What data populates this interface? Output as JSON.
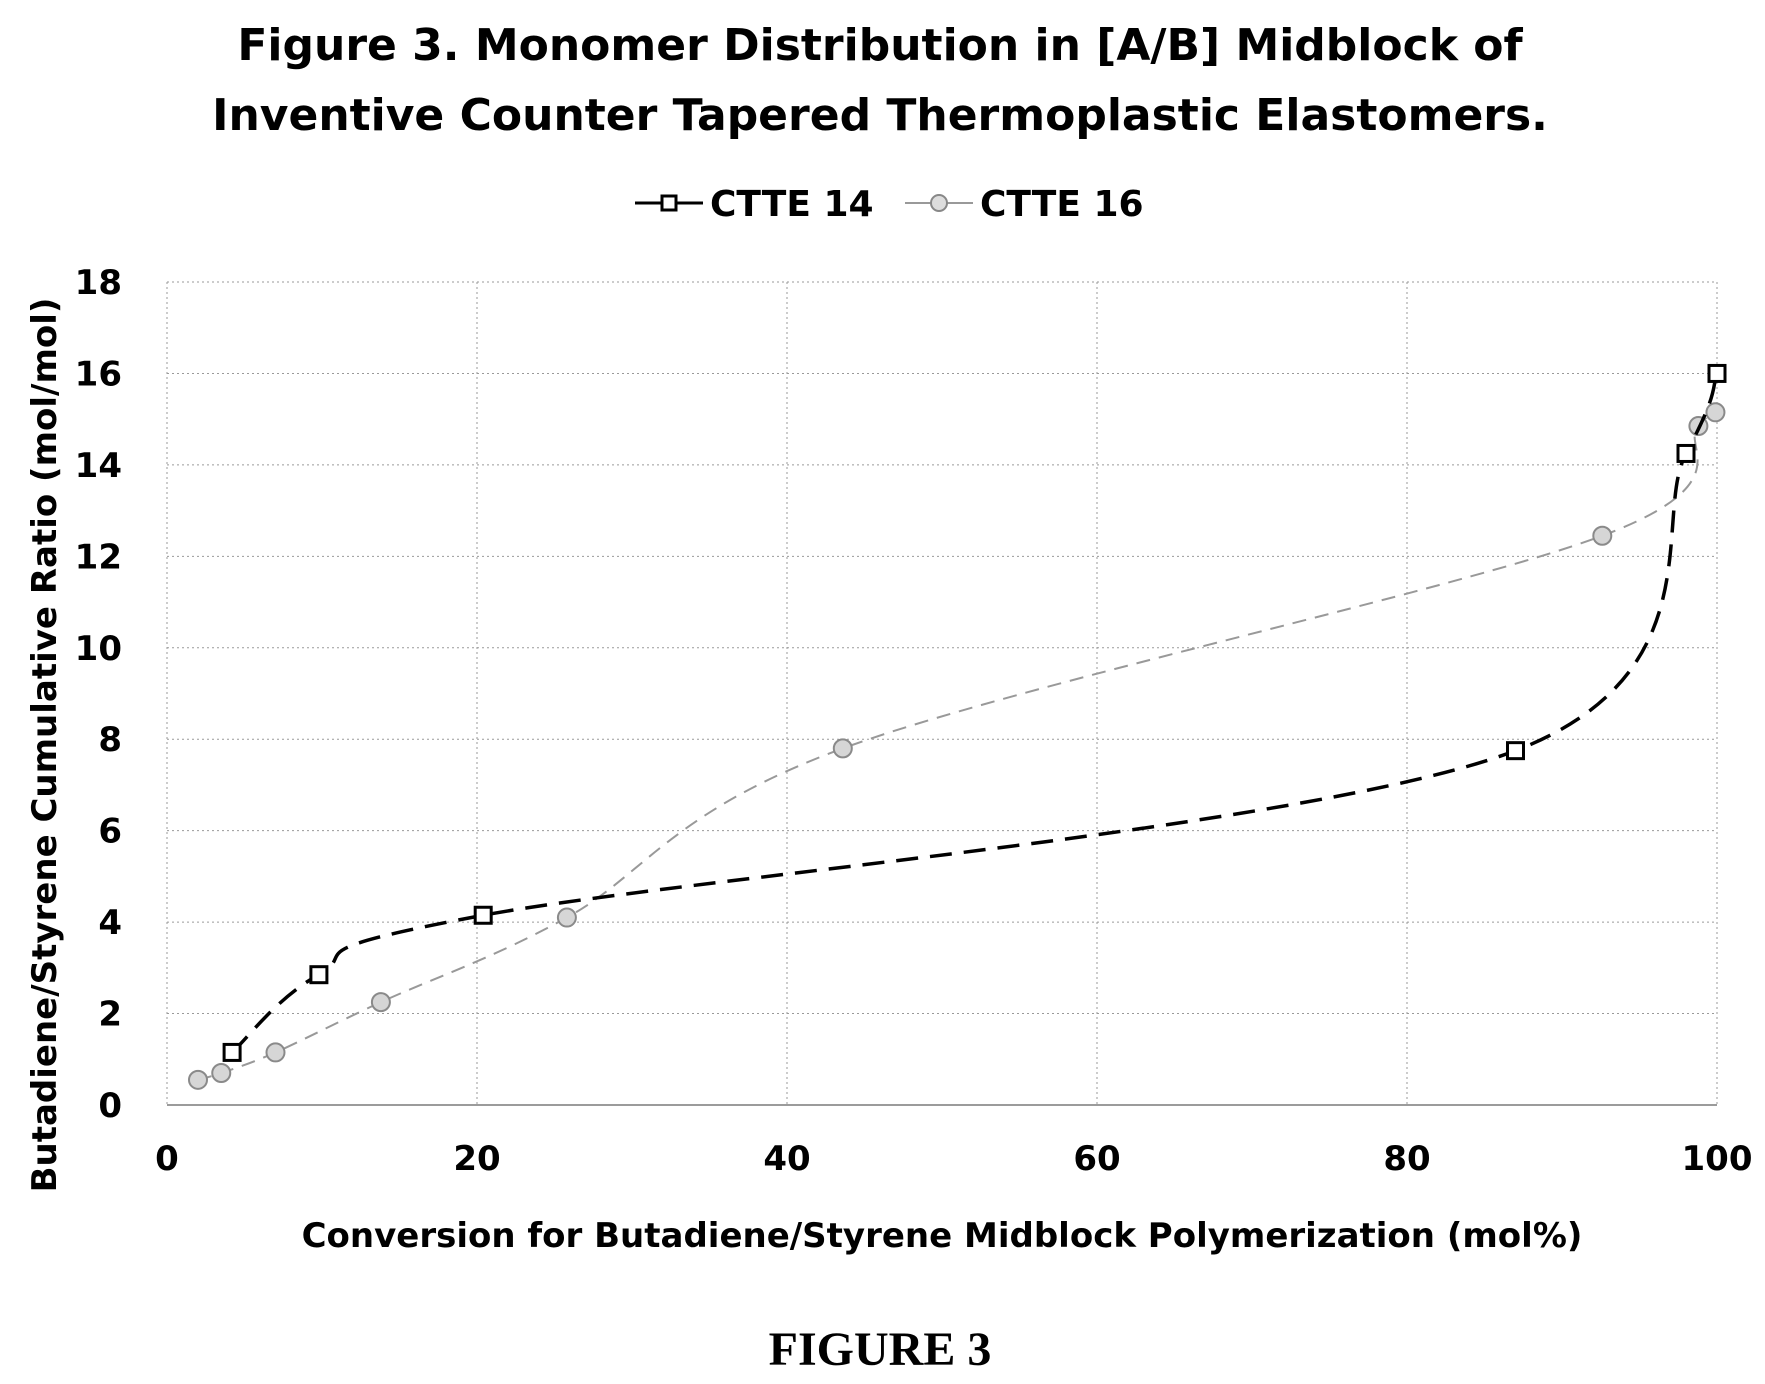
{
  "chart_data": {
    "type": "line",
    "title_lines": [
      "Figure 3. Monomer Distribution in [A/B] Midblock of",
      "Inventive Counter Tapered Thermoplastic Elastomers."
    ],
    "xlabel": "Conversion for Butadiene/Styrene Midblock Polymerization (mol%)",
    "ylabel": "Butadiene/Styrene Cumulative Ratio (mol/mol)",
    "xlim": [
      0,
      100
    ],
    "ylim": [
      0,
      18
    ],
    "x_ticks": [
      "0",
      "20",
      "40",
      "60",
      "80",
      "100"
    ],
    "y_ticks": [
      "0",
      "2",
      "4",
      "6",
      "8",
      "10",
      "12",
      "14",
      "16",
      "18"
    ],
    "grid": "major, dotted",
    "legend_position": "top-center",
    "series": [
      {
        "name": "CTTE 14",
        "marker": "square",
        "line_style": "dashed",
        "color": "#000000",
        "points": [
          {
            "x": 4.2,
            "y": 1.15
          },
          {
            "x": 9.8,
            "y": 2.85
          },
          {
            "x": 20.4,
            "y": 4.15
          },
          {
            "x": 87.0,
            "y": 7.75
          },
          {
            "x": 98.0,
            "y": 14.25
          },
          {
            "x": 100.0,
            "y": 16.0
          }
        ]
      },
      {
        "name": "CTTE 16",
        "marker": "circle",
        "line_style": "dashed",
        "color": "#999999",
        "points": [
          {
            "x": 2.0,
            "y": 0.55
          },
          {
            "x": 3.5,
            "y": 0.7
          },
          {
            "x": 7.0,
            "y": 1.15
          },
          {
            "x": 13.8,
            "y": 2.25
          },
          {
            "x": 25.8,
            "y": 4.1
          },
          {
            "x": 43.6,
            "y": 7.8
          },
          {
            "x": 92.6,
            "y": 12.45
          },
          {
            "x": 98.8,
            "y": 14.85
          },
          {
            "x": 99.9,
            "y": 15.15
          }
        ]
      }
    ]
  },
  "figure_caption": "FIGURE 3"
}
